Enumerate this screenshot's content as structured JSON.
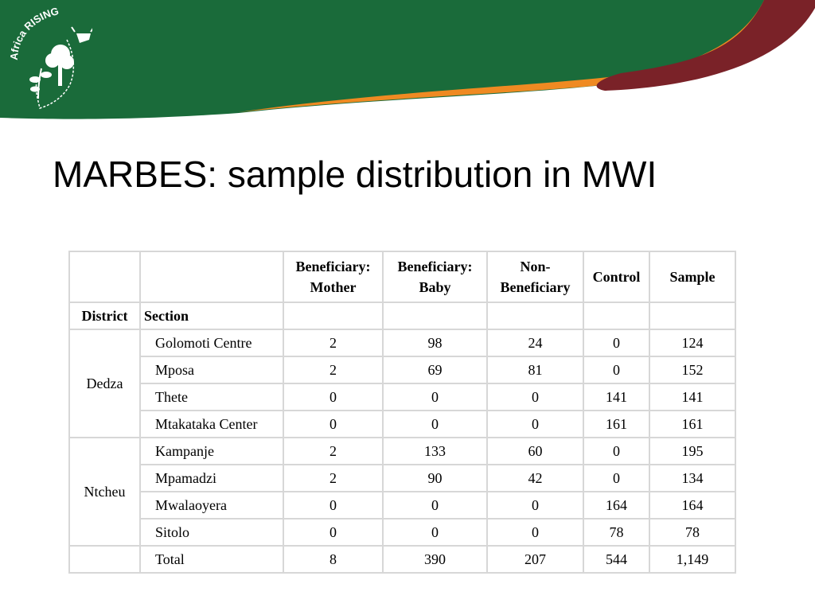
{
  "logo": {
    "name": "Africa RISING",
    "sub": "AFRICA RISING"
  },
  "colors": {
    "green": "#1a6b3a",
    "orange": "#ef8a22",
    "maroon": "#7a2228"
  },
  "slide": {
    "title": "MARBES: sample distribution in MWI"
  },
  "table": {
    "headers": [
      "Beneficiary: Mother",
      "Beneficiary: Baby",
      "Non-Beneficiary",
      "Control",
      "Sample"
    ],
    "header_lines": [
      [
        "Beneficiary:",
        "Mother"
      ],
      [
        "Beneficiary:",
        "Baby"
      ],
      [
        "Non-",
        "Beneficiary"
      ],
      [
        "Control"
      ],
      [
        "Sample"
      ]
    ],
    "district_label": "District",
    "section_label": "Section",
    "groups": [
      {
        "district": "Dedza",
        "rows": [
          {
            "section": "Golomoti Centre",
            "values": [
              "2",
              "98",
              "24",
              "0",
              "124"
            ]
          },
          {
            "section": "Mposa",
            "values": [
              "2",
              "69",
              "81",
              "0",
              "152"
            ]
          },
          {
            "section": "Thete",
            "values": [
              "0",
              "0",
              "0",
              "141",
              "141"
            ]
          },
          {
            "section": "Mtakataka Center",
            "values": [
              "0",
              "0",
              "0",
              "161",
              "161"
            ]
          }
        ]
      },
      {
        "district": "Ntcheu",
        "rows": [
          {
            "section": "Kampanje",
            "values": [
              "2",
              "133",
              "60",
              "0",
              "195"
            ]
          },
          {
            "section": "Mpamadzi",
            "values": [
              "2",
              "90",
              "42",
              "0",
              "134"
            ]
          },
          {
            "section": "Mwalaoyera",
            "values": [
              "0",
              "0",
              "0",
              "164",
              "164"
            ]
          },
          {
            "section": "Sitolo",
            "values": [
              "0",
              "0",
              "0",
              "78",
              "78"
            ]
          }
        ]
      }
    ],
    "total": {
      "label": "Total",
      "values": [
        "8",
        "390",
        "207",
        "544",
        "1,149"
      ]
    }
  }
}
